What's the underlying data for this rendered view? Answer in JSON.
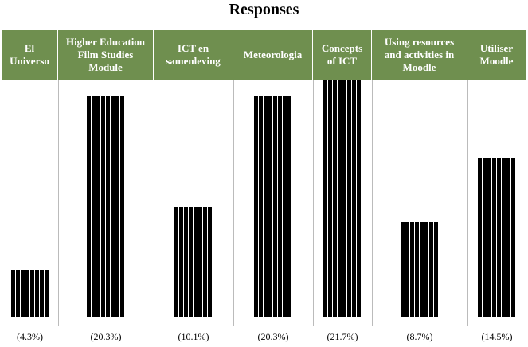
{
  "chart_data": {
    "type": "bar",
    "title": "Responses",
    "categories": [
      "El Universo",
      "Higher Education Film Studies Module",
      "ICT en samenleving",
      "Meteorologia",
      "Concepts of ICT",
      "Using resources and activities in Moodle",
      "Utiliser Moodle"
    ],
    "values": [
      4.3,
      20.3,
      10.1,
      20.3,
      21.7,
      8.7,
      14.5
    ],
    "value_labels": [
      "(4.3%)",
      "(20.3%)",
      "(10.1%)",
      "(20.3%)",
      "(21.7%)",
      "(8.7%)",
      "(14.5%)"
    ],
    "color": "#000000",
    "header_color": "#6f8f4f"
  }
}
